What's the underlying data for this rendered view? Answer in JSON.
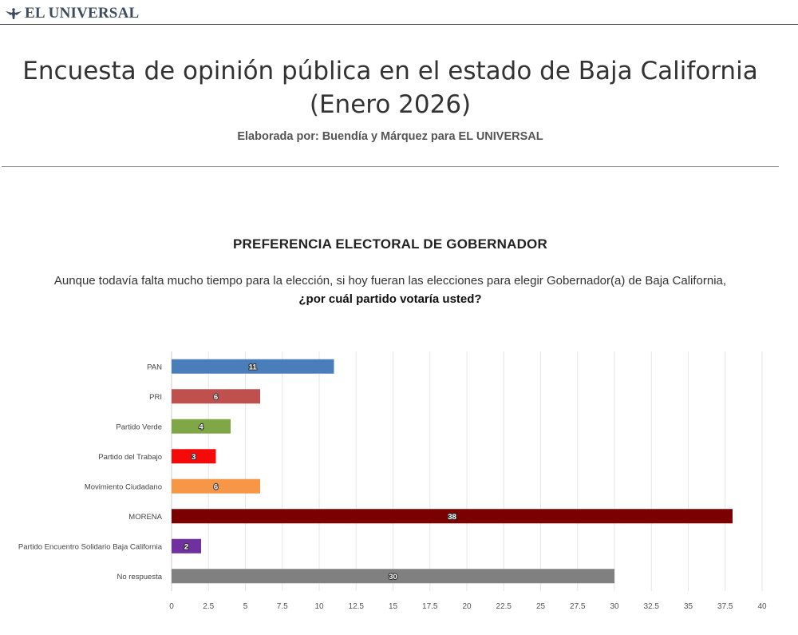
{
  "header": {
    "brand": "EL UNIVERSAL"
  },
  "page": {
    "title": "Encuesta de opinión pública en el estado de Baja California (Enero 2026)",
    "byline": "Elaborada por: Buendía y Márquez para EL UNIVERSAL"
  },
  "section": {
    "title": "PREFERENCIA ELECTORAL DE GOBERNADOR",
    "question_part1": "Aunque todavía falta mucho tiempo para la elección, si hoy fueran las elecciones para elegir Gobernador(a) de Baja California,",
    "question_part2": "¿por cuál partido votaría usted?"
  },
  "chart_data": {
    "type": "bar",
    "orientation": "horizontal",
    "title": "",
    "xlabel": "",
    "ylabel": "",
    "xlim": [
      0,
      40
    ],
    "x_ticks": [
      0,
      2.5,
      5,
      7.5,
      10,
      12.5,
      15,
      17.5,
      20,
      22.5,
      25,
      27.5,
      30,
      32.5,
      35,
      37.5,
      40
    ],
    "grid": true,
    "categories": [
      "PAN",
      "PRI",
      "Partido Verde",
      "Partido del Trabajo",
      "Movimiento Ciudadano",
      "MORENA",
      "Partido Encuentro Solidario Baja California",
      "No respuesta"
    ],
    "values": [
      11,
      6,
      4,
      3,
      6,
      38,
      2,
      30
    ],
    "colors": [
      "#4a7ebb",
      "#c0504d",
      "#7fa745",
      "#f50a0a",
      "#f79646",
      "#7b0000",
      "#7030a0",
      "#808080"
    ]
  }
}
